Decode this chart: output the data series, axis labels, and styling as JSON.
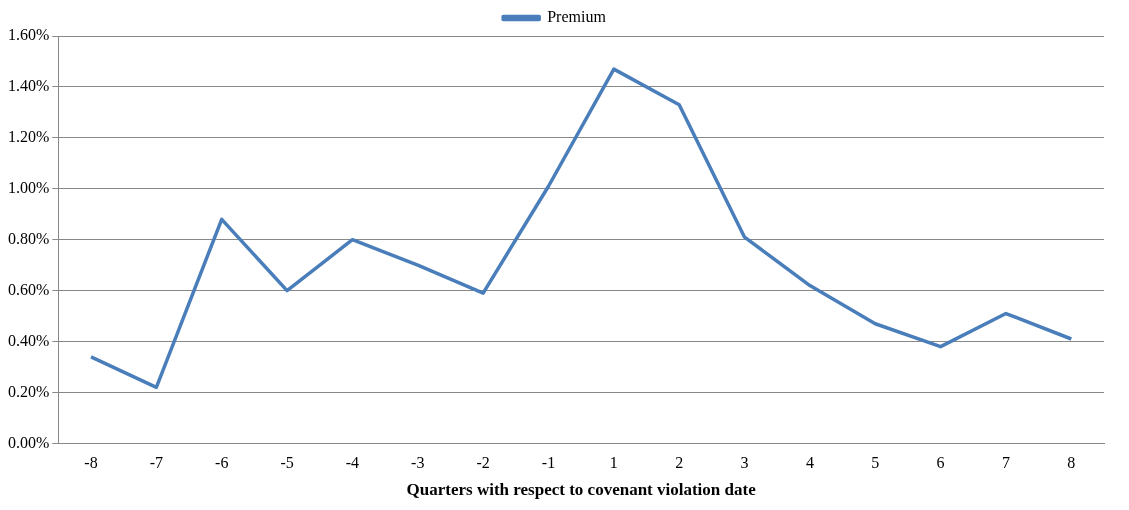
{
  "chart_data": {
    "type": "line",
    "xlabel": "Quarters with respect to covenant violation date",
    "categories": [
      "-8",
      "-7",
      "-6",
      "-5",
      "-4",
      "-3",
      "-2",
      "-1",
      "1",
      "2",
      "3",
      "4",
      "5",
      "6",
      "7",
      "8"
    ],
    "series": [
      {
        "name": "Premium",
        "color": "#4a7ebb",
        "values": [
          0.34,
          0.22,
          0.88,
          0.6,
          0.8,
          0.7,
          0.59,
          1.01,
          1.47,
          1.33,
          0.81,
          0.62,
          0.47,
          0.38,
          0.51,
          0.41
        ]
      }
    ],
    "ylim": [
      0,
      1.6
    ],
    "yticks": [
      {
        "value": 0,
        "label": "0.00%"
      },
      {
        "value": 0.2,
        "label": "0.20%"
      },
      {
        "value": 0.4,
        "label": "0.40%"
      },
      {
        "value": 0.6,
        "label": "0.60%"
      },
      {
        "value": 0.8,
        "label": "0.80%"
      },
      {
        "value": 1.0,
        "label": "1.00%"
      },
      {
        "value": 1.2,
        "label": "1.20%"
      },
      {
        "value": 1.4,
        "label": "1.40%"
      },
      {
        "value": 1.6,
        "label": "1.60%"
      }
    ],
    "grid": "y",
    "legend": "top",
    "marker": "none",
    "line_style": "solid"
  }
}
